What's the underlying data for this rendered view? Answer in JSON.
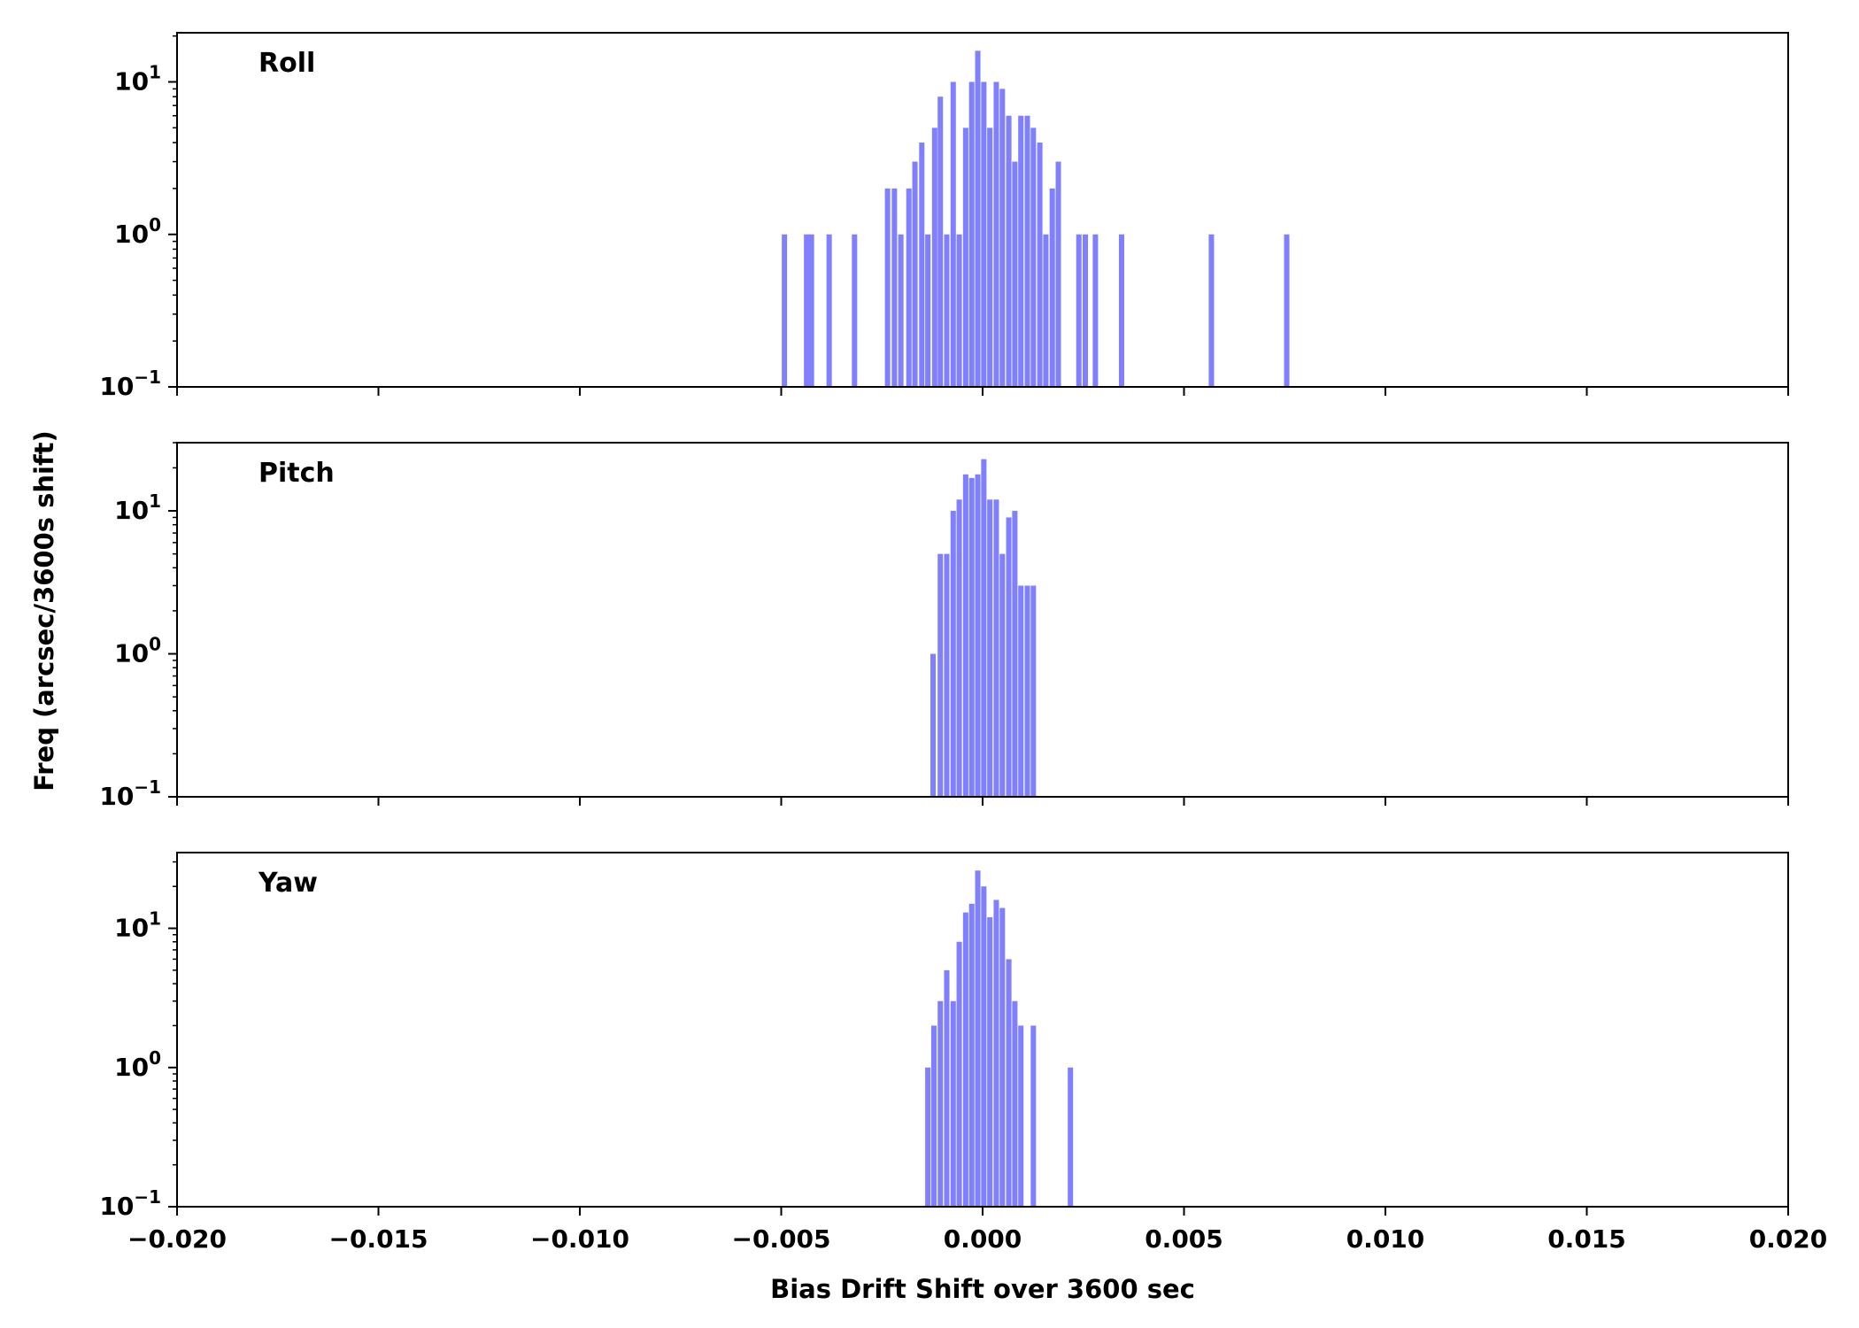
{
  "chart_data": {
    "type": "bar",
    "xlabel": "Bias Drift Shift over 3600 sec",
    "ylabel": "Freq (arcsec/3600s shift)",
    "xlim": [
      -0.02,
      0.02
    ],
    "x_ticks": [
      -0.02,
      -0.015,
      -0.01,
      -0.005,
      0.0,
      0.005,
      0.01,
      0.015,
      0.02
    ],
    "x_tick_labels": [
      "−0.020",
      "−0.015",
      "−0.010",
      "−0.005",
      "0.000",
      "0.005",
      "0.010",
      "0.015",
      "0.020"
    ],
    "yscale": "log",
    "y_tick_labels": {
      "neg1": "10",
      "zero": "10",
      "one": "10",
      "exp_neg1": "−1",
      "exp_zero": "0",
      "exp_one": "1"
    },
    "bar_color": "#8080ff",
    "bin_width": 0.0001326,
    "panels": [
      {
        "name": "Roll",
        "ylim": [
          0.1,
          21
        ],
        "bins": [
          [
            -0.00492,
            1
          ],
          [
            -0.00437,
            1
          ],
          [
            -0.00425,
            1
          ],
          [
            -0.00381,
            1
          ],
          [
            -0.00318,
            1
          ],
          [
            -0.00236,
            2
          ],
          [
            -0.00219,
            2
          ],
          [
            -0.00203,
            1
          ],
          [
            -0.00183,
            2
          ],
          [
            -0.00168,
            3
          ],
          [
            -0.00151,
            4
          ],
          [
            -0.00136,
            1
          ],
          [
            -0.00119,
            5
          ],
          [
            -0.00105,
            8
          ],
          [
            -0.00089,
            1
          ],
          [
            -0.00073,
            10
          ],
          [
            -0.00058,
            1
          ],
          [
            -0.00042,
            5
          ],
          [
            -0.00027,
            10
          ],
          [
            -0.00012,
            16
          ],
          [
            3e-05,
            10
          ],
          [
            0.00018,
            5
          ],
          [
            0.00034,
            10
          ],
          [
            0.00049,
            9
          ],
          [
            0.00065,
            6
          ],
          [
            0.0008,
            3
          ],
          [
            0.00095,
            6
          ],
          [
            0.00111,
            6
          ],
          [
            0.00126,
            5
          ],
          [
            0.00142,
            4
          ],
          [
            0.00157,
            1
          ],
          [
            0.00173,
            2
          ],
          [
            0.00188,
            3
          ],
          [
            0.00239,
            1
          ],
          [
            0.00255,
            1
          ],
          [
            0.0028,
            1
          ],
          [
            0.00345,
            1
          ],
          [
            0.00568,
            1
          ],
          [
            0.00755,
            1
          ]
        ]
      },
      {
        "name": "Pitch",
        "ylim": [
          0.1,
          30
        ],
        "bins": [
          [
            -0.00123,
            1
          ],
          [
            -0.00105,
            5
          ],
          [
            -0.00089,
            5
          ],
          [
            -0.00073,
            10
          ],
          [
            -0.00058,
            12
          ],
          [
            -0.00042,
            18
          ],
          [
            -0.00027,
            17
          ],
          [
            -0.00012,
            18
          ],
          [
            3e-05,
            23
          ],
          [
            0.00018,
            12
          ],
          [
            0.00034,
            12
          ],
          [
            0.00049,
            5
          ],
          [
            0.00065,
            9
          ],
          [
            0.0008,
            10
          ],
          [
            0.00095,
            3
          ],
          [
            0.00111,
            3
          ],
          [
            0.00126,
            3
          ]
        ]
      },
      {
        "name": "Yaw",
        "ylim": [
          0.1,
          35
        ],
        "bins": [
          [
            -0.00136,
            1
          ],
          [
            -0.00121,
            2
          ],
          [
            -0.00105,
            3
          ],
          [
            -0.00089,
            5
          ],
          [
            -0.00073,
            3
          ],
          [
            -0.00058,
            8
          ],
          [
            -0.00042,
            13
          ],
          [
            -0.00027,
            15
          ],
          [
            -0.00012,
            26
          ],
          [
            3e-05,
            20
          ],
          [
            0.00018,
            12
          ],
          [
            0.00034,
            16
          ],
          [
            0.00049,
            14
          ],
          [
            0.00065,
            6
          ],
          [
            0.0008,
            3
          ],
          [
            0.00095,
            2
          ],
          [
            0.00126,
            2
          ],
          [
            0.00218,
            1
          ]
        ]
      }
    ]
  }
}
